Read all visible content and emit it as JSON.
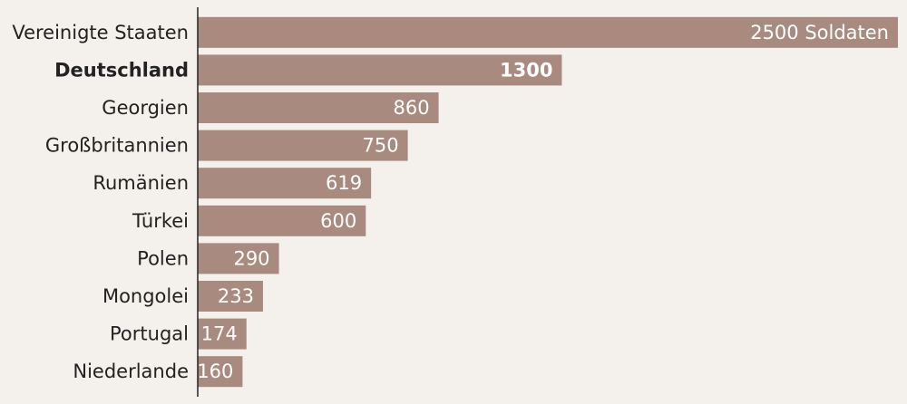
{
  "chart_data": {
    "type": "hbar",
    "categories": [
      "Vereinigte Staaten",
      "Deutschland",
      "Georgien",
      "Großbritannien",
      "Rumänien",
      "Türkei",
      "Polen",
      "Mongolei",
      "Portugal",
      "Niederlande"
    ],
    "values": [
      2500,
      1300,
      860,
      750,
      619,
      600,
      290,
      233,
      174,
      160
    ],
    "value_labels": [
      "2500 Soldaten",
      "1300",
      "860",
      "750",
      "619",
      "600",
      "290",
      "233",
      "174",
      "160"
    ],
    "color": "#a88b7e",
    "xlim": [
      0,
      2500
    ],
    "bold_categories": [
      1
    ]
  }
}
